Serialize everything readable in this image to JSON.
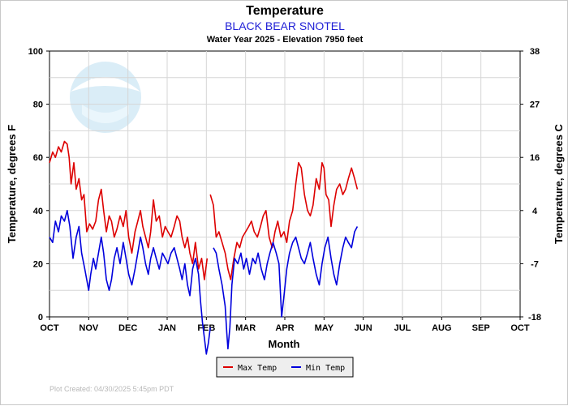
{
  "chart_data": {
    "type": "line",
    "title": "Temperature",
    "station": "BLACK BEAR SNOTEL",
    "subtitle": "Water Year 2025 -  Elevation 7950 feet",
    "xlabel": "Month",
    "ylabel_left": "Temperature, degrees F",
    "ylabel_right": "Temperature, degrees C",
    "x_ticks": [
      "OCT",
      "NOV",
      "DEC",
      "JAN",
      "FEB",
      "MAR",
      "APR",
      "MAY",
      "JUN",
      "JUL",
      "AUG",
      "SEP",
      "OCT"
    ],
    "xlim": [
      0,
      12
    ],
    "ylim_left": [
      0,
      100
    ],
    "y_ticks_left": [
      0,
      20,
      40,
      60,
      80,
      100
    ],
    "y_ticks_right": [
      -18,
      -7,
      4,
      16,
      27,
      38
    ],
    "grid": true,
    "watermark": "NOAA",
    "credit": "Plot Created: 04/30/2025 5:45pm PDT",
    "legend_position": "bottom-center",
    "series": [
      {
        "name": "Max Temp",
        "color": "#dd0000",
        "points": [
          [
            0.0,
            58
          ],
          [
            0.08,
            62
          ],
          [
            0.15,
            60
          ],
          [
            0.23,
            64
          ],
          [
            0.3,
            62
          ],
          [
            0.38,
            66
          ],
          [
            0.45,
            65
          ],
          [
            0.5,
            60
          ],
          [
            0.55,
            50
          ],
          [
            0.62,
            58
          ],
          [
            0.68,
            48
          ],
          [
            0.75,
            52
          ],
          [
            0.82,
            44
          ],
          [
            0.88,
            46
          ],
          [
            0.95,
            32
          ],
          [
            1.02,
            35
          ],
          [
            1.1,
            33
          ],
          [
            1.18,
            36
          ],
          [
            1.25,
            44
          ],
          [
            1.32,
            48
          ],
          [
            1.38,
            40
          ],
          [
            1.45,
            32
          ],
          [
            1.52,
            38
          ],
          [
            1.58,
            36
          ],
          [
            1.65,
            30
          ],
          [
            1.72,
            33
          ],
          [
            1.8,
            38
          ],
          [
            1.88,
            34
          ],
          [
            1.95,
            40
          ],
          [
            2.02,
            30
          ],
          [
            2.1,
            24
          ],
          [
            2.18,
            32
          ],
          [
            2.25,
            36
          ],
          [
            2.32,
            40
          ],
          [
            2.38,
            34
          ],
          [
            2.45,
            30
          ],
          [
            2.52,
            26
          ],
          [
            2.58,
            32
          ],
          [
            2.65,
            44
          ],
          [
            2.72,
            36
          ],
          [
            2.8,
            38
          ],
          [
            2.88,
            30
          ],
          [
            2.95,
            34
          ],
          [
            3.02,
            32
          ],
          [
            3.1,
            30
          ],
          [
            3.18,
            34
          ],
          [
            3.25,
            38
          ],
          [
            3.32,
            36
          ],
          [
            3.38,
            30
          ],
          [
            3.45,
            26
          ],
          [
            3.52,
            30
          ],
          [
            3.58,
            24
          ],
          [
            3.65,
            20
          ],
          [
            3.72,
            28
          ],
          [
            3.8,
            18
          ],
          [
            3.88,
            22
          ],
          [
            3.95,
            14
          ],
          [
            4.02,
            22
          ]
        ]
      },
      {
        "name": "Max Temp",
        "color": "#dd0000",
        "points": [
          [
            4.1,
            46
          ],
          [
            4.18,
            42
          ],
          [
            4.25,
            30
          ],
          [
            4.32,
            32
          ],
          [
            4.4,
            28
          ],
          [
            4.48,
            24
          ],
          [
            4.55,
            18
          ],
          [
            4.62,
            14
          ],
          [
            4.7,
            22
          ],
          [
            4.78,
            28
          ],
          [
            4.85,
            26
          ],
          [
            4.92,
            30
          ],
          [
            5.0,
            32
          ],
          [
            5.08,
            34
          ],
          [
            5.15,
            36
          ],
          [
            5.22,
            32
          ],
          [
            5.3,
            30
          ],
          [
            5.38,
            34
          ],
          [
            5.45,
            38
          ],
          [
            5.52,
            40
          ],
          [
            5.6,
            30
          ],
          [
            5.68,
            26
          ],
          [
            5.75,
            32
          ],
          [
            5.82,
            36
          ],
          [
            5.9,
            30
          ],
          [
            5.98,
            32
          ],
          [
            6.05,
            28
          ],
          [
            6.12,
            36
          ],
          [
            6.2,
            40
          ],
          [
            6.28,
            50
          ],
          [
            6.35,
            58
          ],
          [
            6.42,
            56
          ],
          [
            6.5,
            46
          ],
          [
            6.58,
            40
          ],
          [
            6.65,
            38
          ],
          [
            6.72,
            42
          ],
          [
            6.8,
            52
          ],
          [
            6.88,
            48
          ],
          [
            6.95,
            58
          ],
          [
            7.0,
            56
          ],
          [
            7.05,
            46
          ],
          [
            7.12,
            44
          ],
          [
            7.18,
            34
          ],
          [
            7.25,
            42
          ],
          [
            7.32,
            48
          ],
          [
            7.4,
            50
          ],
          [
            7.48,
            46
          ],
          [
            7.55,
            48
          ],
          [
            7.62,
            52
          ],
          [
            7.7,
            56
          ],
          [
            7.78,
            52
          ],
          [
            7.85,
            48
          ]
        ]
      },
      {
        "name": "Min Temp",
        "color": "#0000dd",
        "points": [
          [
            0.0,
            30
          ],
          [
            0.08,
            28
          ],
          [
            0.15,
            36
          ],
          [
            0.23,
            32
          ],
          [
            0.3,
            38
          ],
          [
            0.38,
            36
          ],
          [
            0.45,
            40
          ],
          [
            0.52,
            34
          ],
          [
            0.6,
            22
          ],
          [
            0.68,
            30
          ],
          [
            0.75,
            34
          ],
          [
            0.82,
            24
          ],
          [
            0.9,
            18
          ],
          [
            0.95,
            14
          ],
          [
            1.0,
            10
          ],
          [
            1.05,
            16
          ],
          [
            1.12,
            22
          ],
          [
            1.18,
            18
          ],
          [
            1.25,
            24
          ],
          [
            1.32,
            30
          ],
          [
            1.38,
            24
          ],
          [
            1.45,
            14
          ],
          [
            1.52,
            10
          ],
          [
            1.58,
            14
          ],
          [
            1.65,
            22
          ],
          [
            1.72,
            26
          ],
          [
            1.8,
            20
          ],
          [
            1.88,
            28
          ],
          [
            1.95,
            22
          ],
          [
            2.02,
            16
          ],
          [
            2.1,
            12
          ],
          [
            2.18,
            18
          ],
          [
            2.25,
            24
          ],
          [
            2.32,
            30
          ],
          [
            2.38,
            26
          ],
          [
            2.45,
            20
          ],
          [
            2.52,
            16
          ],
          [
            2.58,
            22
          ],
          [
            2.65,
            26
          ],
          [
            2.72,
            22
          ],
          [
            2.8,
            18
          ],
          [
            2.88,
            24
          ],
          [
            2.95,
            22
          ],
          [
            3.02,
            20
          ],
          [
            3.1,
            24
          ],
          [
            3.18,
            26
          ],
          [
            3.25,
            22
          ],
          [
            3.32,
            18
          ],
          [
            3.38,
            14
          ],
          [
            3.45,
            20
          ],
          [
            3.52,
            12
          ],
          [
            3.58,
            8
          ],
          [
            3.65,
            18
          ],
          [
            3.72,
            22
          ],
          [
            3.8,
            16
          ],
          [
            3.85,
            6
          ],
          [
            3.9,
            -2
          ],
          [
            3.95,
            -8
          ],
          [
            4.0,
            -14
          ],
          [
            4.05,
            -10
          ],
          [
            4.1,
            -4
          ]
        ]
      },
      {
        "name": "Min Temp",
        "color": "#0000dd",
        "points": [
          [
            4.18,
            26
          ],
          [
            4.25,
            24
          ],
          [
            4.32,
            18
          ],
          [
            4.4,
            12
          ],
          [
            4.48,
            4
          ],
          [
            4.52,
            -6
          ],
          [
            4.55,
            -12
          ],
          [
            4.6,
            -4
          ],
          [
            4.65,
            12
          ],
          [
            4.72,
            22
          ],
          [
            4.8,
            20
          ],
          [
            4.88,
            24
          ],
          [
            4.95,
            18
          ],
          [
            5.02,
            22
          ],
          [
            5.1,
            16
          ],
          [
            5.18,
            22
          ],
          [
            5.25,
            20
          ],
          [
            5.32,
            24
          ],
          [
            5.4,
            18
          ],
          [
            5.48,
            14
          ],
          [
            5.55,
            20
          ],
          [
            5.62,
            24
          ],
          [
            5.7,
            28
          ],
          [
            5.78,
            24
          ],
          [
            5.85,
            20
          ],
          [
            5.92,
            0
          ],
          [
            5.98,
            8
          ],
          [
            6.05,
            18
          ],
          [
            6.12,
            24
          ],
          [
            6.2,
            28
          ],
          [
            6.28,
            30
          ],
          [
            6.35,
            26
          ],
          [
            6.42,
            22
          ],
          [
            6.5,
            20
          ],
          [
            6.58,
            24
          ],
          [
            6.65,
            28
          ],
          [
            6.72,
            22
          ],
          [
            6.8,
            16
          ],
          [
            6.88,
            12
          ],
          [
            6.95,
            20
          ],
          [
            7.02,
            26
          ],
          [
            7.1,
            30
          ],
          [
            7.18,
            22
          ],
          [
            7.25,
            16
          ],
          [
            7.32,
            12
          ],
          [
            7.4,
            20
          ],
          [
            7.48,
            26
          ],
          [
            7.55,
            30
          ],
          [
            7.62,
            28
          ],
          [
            7.7,
            26
          ],
          [
            7.78,
            32
          ],
          [
            7.85,
            34
          ]
        ]
      }
    ]
  }
}
